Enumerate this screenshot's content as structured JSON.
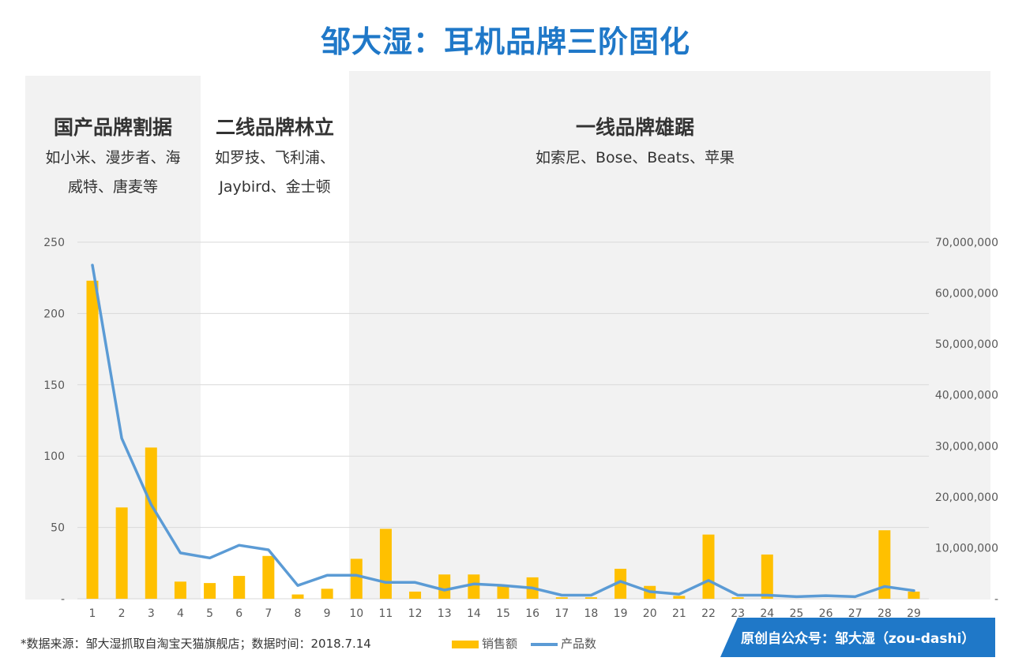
{
  "title": "邹大湿：耳机品牌三阶固化",
  "segments": [
    {
      "title": "国产品牌割据",
      "desc": [
        "如小米、漫步者、海",
        "威特、唐麦等"
      ]
    },
    {
      "title": "二线品牌林立",
      "desc": [
        "如罗技、飞利浦、",
        "Jaybird、金士顿"
      ]
    },
    {
      "title": "一线品牌雄踞",
      "desc": [
        "如索尼、Bose、Beats、苹果"
      ]
    }
  ],
  "footer": {
    "source": "*数据来源：邹大湿抓取自淘宝天猫旗舰店；数据时间：2018.7.14",
    "banner": "原创自公众号：邹大湿（zou-dashi）"
  },
  "colors": {
    "title": "#1f78c8",
    "bar": "#ffc000",
    "line": "#5b9bd5",
    "band": "#f2f2f2"
  },
  "chart_data": {
    "type": "bar",
    "categories": [
      "1",
      "2",
      "3",
      "4",
      "5",
      "6",
      "7",
      "8",
      "9",
      "10",
      "11",
      "12",
      "13",
      "14",
      "15",
      "16",
      "17",
      "18",
      "19",
      "20",
      "21",
      "22",
      "23",
      "24",
      "25",
      "26",
      "27",
      "28",
      "29"
    ],
    "series": [
      {
        "name": "销售额",
        "type": "bar",
        "axis": "left",
        "values": [
          223,
          64,
          106,
          12,
          11,
          16,
          30,
          3,
          7,
          28,
          49,
          5,
          17,
          17,
          9,
          15,
          1,
          1,
          21,
          9,
          2,
          45,
          1,
          31,
          0,
          0,
          0,
          48,
          5
        ]
      },
      {
        "name": "产品数",
        "type": "line",
        "axis": "right",
        "values": [
          65500000,
          31500000,
          18500000,
          9000000,
          8000000,
          10500000,
          9600000,
          2600000,
          4600000,
          4600000,
          3200000,
          3200000,
          1700000,
          2900000,
          2600000,
          2100000,
          700000,
          700000,
          3400000,
          1400000,
          900000,
          3600000,
          700000,
          700000,
          400000,
          600000,
          400000,
          2400000,
          1600000
        ]
      }
    ],
    "yleft": {
      "ticks": [
        "-",
        "50",
        "100",
        "150",
        "200",
        "250"
      ],
      "ylim": [
        0,
        250
      ]
    },
    "yright": {
      "ticks": [
        "-",
        "10,000,000",
        "20,000,000",
        "30,000,000",
        "40,000,000",
        "50,000,000",
        "60,000,000",
        "70,000,000"
      ],
      "ylim": [
        0,
        70000000
      ]
    },
    "grid": true,
    "legend": "bottom"
  }
}
